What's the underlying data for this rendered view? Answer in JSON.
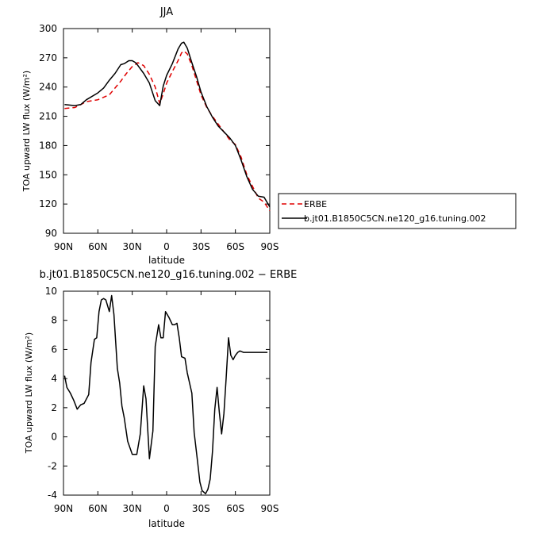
{
  "chart_data": [
    {
      "type": "line",
      "title": "JJA",
      "xlabel": "latitude",
      "ylabel": "TOA upward LW flux (W/m²)",
      "xlim": [
        -90,
        90
      ],
      "ylim": [
        90,
        300
      ],
      "yticks": [
        90,
        120,
        150,
        180,
        210,
        240,
        270,
        300
      ],
      "xticks": [
        {
          "value": -90,
          "label": "90N"
        },
        {
          "value": -60,
          "label": "60N"
        },
        {
          "value": -30,
          "label": "30N"
        },
        {
          "value": 0,
          "label": "0"
        },
        {
          "value": 30,
          "label": "30S"
        },
        {
          "value": 60,
          "label": "60S"
        },
        {
          "value": 90,
          "label": "90S"
        }
      ],
      "legend_position": "right",
      "series": [
        {
          "name": "ERBE",
          "color": "#e00000",
          "dash": "dashed",
          "x": [
            -89,
            -80,
            -75,
            -70,
            -60,
            -50,
            -45,
            -40,
            -35,
            -30,
            -25,
            -20,
            -15,
            -10,
            -6,
            -3,
            0,
            5,
            10,
            13,
            15,
            18,
            22,
            26,
            30,
            35,
            40,
            45,
            50,
            55,
            60,
            65,
            70,
            75,
            80,
            85,
            90
          ],
          "values": [
            218,
            219,
            222,
            225,
            227,
            232,
            239,
            246,
            254,
            261,
            265,
            262,
            253,
            240,
            223,
            233,
            244,
            256,
            267,
            275,
            277,
            274,
            262,
            247,
            232,
            219,
            210,
            202,
            194,
            186,
            181,
            168,
            150,
            138,
            126,
            122,
            113
          ]
        },
        {
          "name": "b.jt01.B1850C5CN.ne120_g16.tuning.002",
          "color": "#000000",
          "dash": "solid",
          "x": [
            -89,
            -80,
            -75,
            -70,
            -60,
            -55,
            -50,
            -45,
            -40,
            -37,
            -33,
            -30,
            -27,
            -25,
            -20,
            -15,
            -10,
            -6,
            -3,
            0,
            5,
            10,
            13,
            15,
            18,
            22,
            26,
            30,
            35,
            40,
            45,
            50,
            55,
            60,
            65,
            70,
            75,
            80,
            85,
            90
          ],
          "values": [
            222,
            221,
            222,
            227,
            234,
            239,
            247,
            254,
            263,
            264,
            267,
            267,
            265,
            262,
            254,
            244,
            226,
            221,
            241,
            252,
            264,
            279,
            285,
            286,
            280,
            265,
            251,
            235,
            220,
            209,
            200,
            194,
            188,
            180,
            165,
            148,
            135,
            128,
            127,
            117
          ]
        }
      ]
    },
    {
      "type": "line",
      "title": "b.jt01.B1850C5CN.ne120_g16.tuning.002 − ERBE",
      "xlabel": "latitude",
      "ylabel": "TOA upward LW flux (W/m²)",
      "xlim": [
        -90,
        90
      ],
      "ylim": [
        -4,
        10
      ],
      "yticks": [
        -4,
        -2,
        0,
        2,
        4,
        6,
        8,
        10
      ],
      "xticks": [
        {
          "value": -90,
          "label": "90N"
        },
        {
          "value": -60,
          "label": "60N"
        },
        {
          "value": -30,
          "label": "30N"
        },
        {
          "value": 0,
          "label": "0"
        },
        {
          "value": 30,
          "label": "30S"
        },
        {
          "value": 60,
          "label": "60S"
        },
        {
          "value": 90,
          "label": "90S"
        }
      ],
      "series": [
        {
          "color": "#000000",
          "dash": "solid",
          "x": [
            -89,
            -87,
            -84,
            -81,
            -78,
            -75,
            -72,
            -68,
            -66,
            -63,
            -61,
            -59,
            -57,
            -55,
            -53,
            -50,
            -48,
            -46,
            -43,
            -41,
            -39,
            -37,
            -34,
            -30,
            -26,
            -23,
            -20,
            -18,
            -15,
            -12,
            -10,
            -7,
            -5,
            -3,
            -1,
            2,
            5,
            7,
            9,
            11,
            13,
            16,
            18,
            22,
            24,
            27,
            29,
            31,
            34,
            36,
            38,
            40,
            42,
            44,
            46,
            48,
            50,
            52,
            54,
            56,
            58,
            60,
            62,
            64,
            67,
            70,
            73,
            75,
            77,
            80,
            82,
            85,
            88
          ],
          "values": [
            4.2,
            3.4,
            3.0,
            2.5,
            1.9,
            2.2,
            2.3,
            2.9,
            5.1,
            6.7,
            6.8,
            8.6,
            9.4,
            9.5,
            9.4,
            8.6,
            9.7,
            8.4,
            4.7,
            3.7,
            2.1,
            1.3,
            -0.3,
            -1.2,
            -1.2,
            0.2,
            3.5,
            2.6,
            -1.5,
            0.4,
            6.2,
            7.7,
            6.8,
            6.8,
            8.6,
            8.2,
            7.7,
            7.7,
            7.8,
            6.8,
            5.5,
            5.4,
            4.4,
            3.0,
            0.3,
            -1.7,
            -3.1,
            -3.7,
            -3.9,
            -3.6,
            -2.9,
            -1.0,
            1.9,
            3.4,
            1.7,
            0.2,
            1.6,
            4.1,
            6.8,
            5.6,
            5.3,
            5.6,
            5.8,
            5.9,
            5.8,
            5.8,
            5.8,
            5.8,
            5.8,
            5.8,
            5.8,
            5.8,
            5.8
          ]
        }
      ]
    }
  ]
}
